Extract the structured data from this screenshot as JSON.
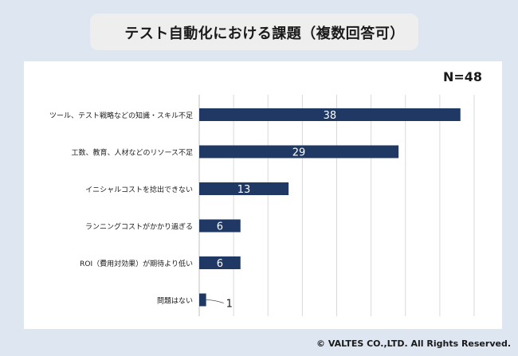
{
  "title": "テスト自動化における課題（複数回答可）",
  "sample_size": "N=48",
  "copyright": "© VALTES CO.,LTD. All Rights Reserved.",
  "colors": {
    "bar": "#1f3864",
    "grid": "#d9d9d9",
    "background": "#dde6f1"
  },
  "chart_data": {
    "type": "bar",
    "orientation": "horizontal",
    "categories": [
      "ツール、テスト戦略などの知識・スキル不足",
      "工数、教育、人材などのリソース不足",
      "イニシャルコストを捻出できない",
      "ランニングコストがかかり過ぎる",
      "ROI（費用対効果）が期待より低い",
      "問題はない"
    ],
    "values": [
      38,
      29,
      13,
      6,
      6,
      1
    ],
    "xlim": [
      0,
      40
    ],
    "grid": true,
    "data_labels": true
  }
}
